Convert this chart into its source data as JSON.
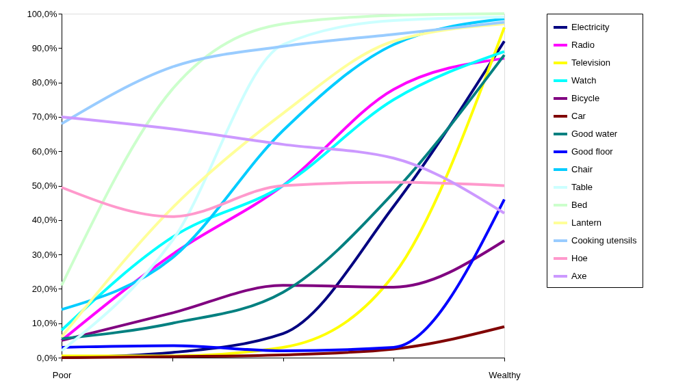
{
  "chart_data": {
    "type": "line",
    "categories": [
      "Poor",
      null,
      null,
      null,
      "Wealthy"
    ],
    "ylim": [
      0,
      100
    ],
    "yticks": [
      {
        "value": 0,
        "label": "0,0%"
      },
      {
        "value": 10,
        "label": "10,0%"
      },
      {
        "value": 20,
        "label": "20,0%"
      },
      {
        "value": 30,
        "label": "30,0%"
      },
      {
        "value": 40,
        "label": "40,0%"
      },
      {
        "value": 50,
        "label": "50,0%"
      },
      {
        "value": 60,
        "label": "60,0%"
      },
      {
        "value": 70,
        "label": "70,0%"
      },
      {
        "value": 80,
        "label": "80,0%"
      },
      {
        "value": 90,
        "label": "90,0%"
      },
      {
        "value": 100,
        "label": "100,0%"
      }
    ],
    "grid": false,
    "legend": "right",
    "marker": "none",
    "line_style": "solid",
    "series": [
      {
        "name": "Electricity",
        "color": "#000080",
        "values": [
          0,
          1.5,
          7,
          44,
          92
        ]
      },
      {
        "name": "Radio",
        "color": "#ff00ff",
        "values": [
          5,
          30,
          50,
          78,
          87
        ]
      },
      {
        "name": "Television",
        "color": "#ffff00",
        "values": [
          0.5,
          0.5,
          3,
          24,
          96
        ]
      },
      {
        "name": "Watch",
        "color": "#00ffff",
        "values": [
          8,
          35,
          50,
          75,
          89
        ]
      },
      {
        "name": "Bicycle",
        "color": "#800080",
        "values": [
          5,
          13,
          21,
          20.5,
          34
        ]
      },
      {
        "name": "Car",
        "color": "#800000",
        "values": [
          0,
          0.3,
          0.8,
          2.5,
          9
        ]
      },
      {
        "name": "Good water",
        "color": "#008080",
        "values": [
          5.5,
          10,
          19,
          48,
          88
        ]
      },
      {
        "name": "Good floor",
        "color": "#0000ff",
        "values": [
          3,
          3.5,
          2,
          3,
          46
        ]
      },
      {
        "name": "Chair",
        "color": "#00ccff",
        "values": [
          14,
          29,
          66,
          91,
          98.5
        ]
      },
      {
        "name": "Table",
        "color": "#ccffff",
        "values": [
          2,
          34,
          91,
          98,
          99
        ]
      },
      {
        "name": "Bed",
        "color": "#ccffcc",
        "values": [
          21,
          78,
          97,
          99.5,
          100
        ]
      },
      {
        "name": "Lantern",
        "color": "#ffff99",
        "values": [
          6,
          43.5,
          71,
          92,
          97
        ]
      },
      {
        "name": "Cooking utensils",
        "color": "#99ccff",
        "values": [
          68,
          84.5,
          90.5,
          94,
          97.5
        ]
      },
      {
        "name": "Hoe",
        "color": "#ff99cc",
        "values": [
          49.5,
          41,
          50,
          51,
          50
        ]
      },
      {
        "name": "Axe",
        "color": "#cc99ff",
        "values": [
          70,
          66.5,
          62,
          58,
          42
        ]
      }
    ]
  }
}
